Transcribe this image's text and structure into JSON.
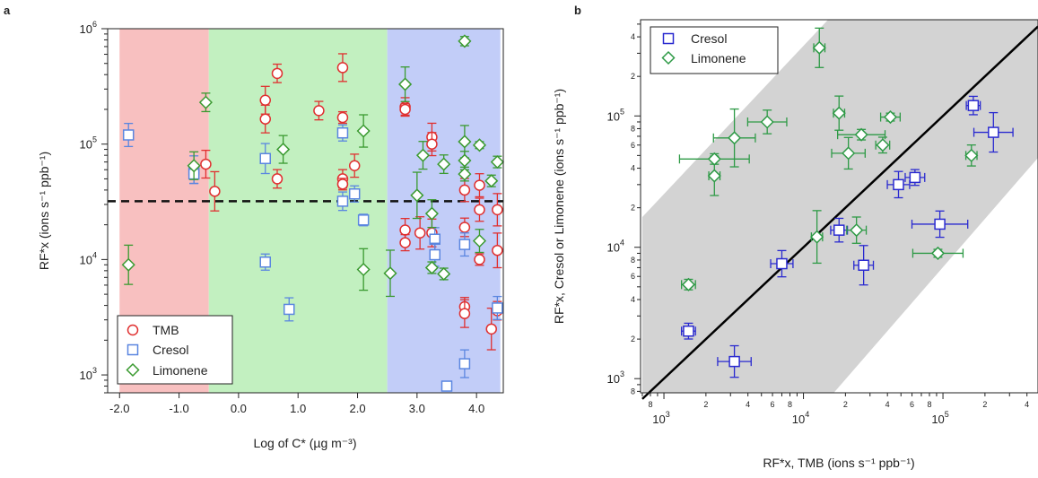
{
  "panel_labels": [
    "a",
    "b"
  ],
  "chart_data": [
    {
      "type": "scatter",
      "panel": "a",
      "xlabel": "Log of C* (µg m⁻³)",
      "ylabel": "RF*x (ions s⁻¹ ppb⁻¹)",
      "yscale": "log",
      "xlim": [
        -2.2,
        4.45
      ],
      "ylim": [
        700,
        1000000
      ],
      "xticks": [
        -2.0,
        -1.0,
        0.0,
        1.0,
        2.0,
        3.0,
        4.0
      ],
      "xtick_labels": [
        "-2.0",
        "-1.0",
        "0.0",
        "1.0",
        "2.0",
        "3.0",
        "4.0"
      ],
      "yticks": [
        {
          "label": "10",
          "exp": "3"
        },
        {
          "label": "10",
          "exp": "4"
        },
        {
          "label": "10",
          "exp": "5"
        },
        {
          "label": "10",
          "exp": "6"
        }
      ],
      "shaded_regions": [
        {
          "x": [
            -2.0,
            -0.5
          ],
          "color": "#f8c0c0"
        },
        {
          "x": [
            -0.5,
            2.5
          ],
          "color": "#c2f0c0"
        },
        {
          "x": [
            2.5,
            4.4
          ],
          "color": "#c2cdf8"
        }
      ],
      "reference_line": {
        "y": 32000,
        "style": "dashed"
      },
      "legend": {
        "position": "bottom-left",
        "entries": [
          "TMB",
          "Cresol",
          "Limonene"
        ]
      },
      "series": [
        {
          "name": "TMB",
          "marker": "circle",
          "color": "#e03030",
          "points": [
            {
              "x": -0.55,
              "y": 67000,
              "err": 0.12
            },
            {
              "x": -0.4,
              "y": 39000,
              "err": 0.17
            },
            {
              "x": 0.45,
              "y": 240000,
              "err": 0.12
            },
            {
              "x": 0.45,
              "y": 165000,
              "err": 0.12
            },
            {
              "x": 0.65,
              "y": 410000,
              "err": 0.08
            },
            {
              "x": 0.65,
              "y": 50000,
              "err": 0.08
            },
            {
              "x": 1.35,
              "y": 195000,
              "err": 0.08
            },
            {
              "x": 1.75,
              "y": 460000,
              "err": 0.12
            },
            {
              "x": 1.75,
              "y": 170000,
              "err": 0.05
            },
            {
              "x": 1.75,
              "y": 50000,
              "err": 0.08
            },
            {
              "x": 1.75,
              "y": 45000,
              "err": 0.05
            },
            {
              "x": 1.95,
              "y": 65000,
              "err": 0.1
            },
            {
              "x": 2.8,
              "y": 210000,
              "err": 0.08
            },
            {
              "x": 2.8,
              "y": 200000,
              "err": 0.05
            },
            {
              "x": 2.8,
              "y": 18000,
              "err": 0.1
            },
            {
              "x": 2.8,
              "y": 14000,
              "err": 0.07
            },
            {
              "x": 3.05,
              "y": 17000,
              "err": 0.14
            },
            {
              "x": 3.25,
              "y": 115000,
              "err": 0.12
            },
            {
              "x": 3.25,
              "y": 100000,
              "err": 0.1
            },
            {
              "x": 3.25,
              "y": 17000,
              "err": 0.12
            },
            {
              "x": 3.8,
              "y": 40000,
              "err": 0.1
            },
            {
              "x": 3.8,
              "y": 19000,
              "err": 0.08
            },
            {
              "x": 3.8,
              "y": 3900,
              "err": 0.08
            },
            {
              "x": 3.8,
              "y": 3400,
              "err": 0.12
            },
            {
              "x": 4.05,
              "y": 44000,
              "err": 0.1
            },
            {
              "x": 4.05,
              "y": 27000,
              "err": 0.1
            },
            {
              "x": 4.05,
              "y": 10000,
              "err": 0.05
            },
            {
              "x": 4.25,
              "y": 2500,
              "err": 0.18
            },
            {
              "x": 4.35,
              "y": 27000,
              "err": 0.14
            },
            {
              "x": 4.35,
              "y": 12000,
              "err": 0.15
            },
            {
              "x": 4.35,
              "y": 3600,
              "err": 0.08
            }
          ]
        },
        {
          "name": "Cresol",
          "marker": "square",
          "color": "#5a86e0",
          "points": [
            {
              "x": -1.85,
              "y": 120000,
              "err": 0.1
            },
            {
              "x": -0.75,
              "y": 60000,
              "err": 0.12
            },
            {
              "x": -0.75,
              "y": 55000,
              "err": 0.08
            },
            {
              "x": 0.45,
              "y": 75000,
              "err": 0.13
            },
            {
              "x": 0.45,
              "y": 9500,
              "err": 0.07
            },
            {
              "x": 0.85,
              "y": 3700,
              "err": 0.1
            },
            {
              "x": 1.75,
              "y": 125000,
              "err": 0.07
            },
            {
              "x": 1.75,
              "y": 32000,
              "err": 0.08
            },
            {
              "x": 1.95,
              "y": 37000,
              "err": 0.07
            },
            {
              "x": 2.1,
              "y": 22000,
              "err": 0.05
            },
            {
              "x": 3.3,
              "y": 15000,
              "err": 0.1
            },
            {
              "x": 3.3,
              "y": 11000,
              "err": 0.1
            },
            {
              "x": 3.5,
              "y": 800,
              "err": 0.02
            },
            {
              "x": 3.8,
              "y": 13500,
              "err": 0.1
            },
            {
              "x": 3.8,
              "y": 1250,
              "err": 0.12
            },
            {
              "x": 4.35,
              "y": 3800,
              "err": 0.1
            }
          ]
        },
        {
          "name": "Limonene",
          "marker": "diamond",
          "color": "#3a9a30",
          "points": [
            {
              "x": -1.85,
              "y": 9000,
              "err": 0.17
            },
            {
              "x": -0.55,
              "y": 230000,
              "err": 0.08
            },
            {
              "x": -0.75,
              "y": 65000,
              "err": 0.12
            },
            {
              "x": 0.75,
              "y": 90000,
              "err": 0.12
            },
            {
              "x": 2.1,
              "y": 130000,
              "err": 0.14
            },
            {
              "x": 2.1,
              "y": 8200,
              "err": 0.18
            },
            {
              "x": 2.55,
              "y": 7600,
              "err": 0.2
            },
            {
              "x": 2.8,
              "y": 330000,
              "err": 0.15
            },
            {
              "x": 3.0,
              "y": 36000,
              "err": 0.2
            },
            {
              "x": 3.1,
              "y": 80000,
              "err": 0.12
            },
            {
              "x": 3.25,
              "y": 25000,
              "err": 0.12
            },
            {
              "x": 3.25,
              "y": 8500,
              "err": 0.05
            },
            {
              "x": 3.45,
              "y": 67000,
              "err": 0.08
            },
            {
              "x": 3.45,
              "y": 7500,
              "err": 0.05
            },
            {
              "x": 3.8,
              "y": 780000,
              "err": 0.04
            },
            {
              "x": 3.8,
              "y": 105000,
              "err": 0.14
            },
            {
              "x": 3.8,
              "y": 72000,
              "err": 0.08
            },
            {
              "x": 3.8,
              "y": 55000,
              "err": 0.06
            },
            {
              "x": 4.05,
              "y": 98000,
              "err": 0.03
            },
            {
              "x": 4.05,
              "y": 14500,
              "err": 0.1
            },
            {
              "x": 4.25,
              "y": 48000,
              "err": 0.05
            },
            {
              "x": 4.35,
              "y": 70000,
              "err": 0.05
            }
          ]
        }
      ]
    },
    {
      "type": "scatter",
      "panel": "b",
      "xlabel": "RF*x, TMB (ions s⁻¹ ppb⁻¹)",
      "ylabel": "RF*x, Cresol or Limonene (ions s⁻¹ ppb⁻¹)",
      "xscale": "log",
      "yscale": "log",
      "xlim": [
        680,
        480000
      ],
      "ylim": [
        780,
        540000
      ],
      "xtick_major": [
        {
          "label": "10",
          "exp": "3"
        },
        {
          "label": "10",
          "exp": "4"
        },
        {
          "label": "10",
          "exp": "5"
        }
      ],
      "ytick_major": [
        {
          "label": "10",
          "exp": "3"
        },
        {
          "label": "10",
          "exp": "4"
        },
        {
          "label": "10",
          "exp": "5"
        }
      ],
      "minor_tick_labels": [
        "8",
        "2",
        "4",
        "6",
        "8",
        "2",
        "4",
        "6",
        "8",
        "2",
        "4",
        "6",
        "8",
        "2",
        "4"
      ],
      "line": {
        "type": "1:1",
        "color": "#000000"
      },
      "band": {
        "type": "factor of 10 around 1:1",
        "color": "#d3d3d3"
      },
      "legend": {
        "position": "top-left",
        "entries": [
          "Cresol",
          "Limonene"
        ]
      },
      "series": [
        {
          "name": "Cresol",
          "marker": "square",
          "color": "#2a2ad0",
          "points": [
            {
              "x": 1500,
              "y": 2300,
              "xerr": 0.05,
              "yerr": 0.06
            },
            {
              "x": 3200,
              "y": 1350,
              "xerr": 0.12,
              "yerr": 0.12
            },
            {
              "x": 7000,
              "y": 7500,
              "xerr": 0.08,
              "yerr": 0.1
            },
            {
              "x": 18000,
              "y": 13500,
              "xerr": 0.06,
              "yerr": 0.09
            },
            {
              "x": 27000,
              "y": 7300,
              "xerr": 0.07,
              "yerr": 0.15
            },
            {
              "x": 48000,
              "y": 30000,
              "xerr": 0.08,
              "yerr": 0.1
            },
            {
              "x": 63000,
              "y": 34000,
              "xerr": 0.07,
              "yerr": 0.06
            },
            {
              "x": 95000,
              "y": 15000,
              "xerr": 0.2,
              "yerr": 0.1
            },
            {
              "x": 165000,
              "y": 120000,
              "xerr": 0.05,
              "yerr": 0.07
            },
            {
              "x": 230000,
              "y": 75000,
              "xerr": 0.14,
              "yerr": 0.15
            }
          ]
        },
        {
          "name": "Limonene",
          "marker": "diamond",
          "color": "#2e9a46",
          "points": [
            {
              "x": 1500,
              "y": 5200,
              "xerr": 0.05,
              "yerr": 0.04
            },
            {
              "x": 2300,
              "y": 35000,
              "xerr": 0.04,
              "yerr": 0.15
            },
            {
              "x": 2300,
              "y": 47000,
              "xerr": 0.25,
              "yerr": 0.04
            },
            {
              "x": 3200,
              "y": 68000,
              "xerr": 0.15,
              "yerr": 0.22
            },
            {
              "x": 5500,
              "y": 90000,
              "xerr": 0.14,
              "yerr": 0.09
            },
            {
              "x": 12500,
              "y": 12000,
              "xerr": 0.04,
              "yerr": 0.2
            },
            {
              "x": 13000,
              "y": 330000,
              "xerr": 0.04,
              "yerr": 0.15
            },
            {
              "x": 18000,
              "y": 105000,
              "xerr": 0.04,
              "yerr": 0.13
            },
            {
              "x": 21000,
              "y": 52000,
              "xerr": 0.12,
              "yerr": 0.12
            },
            {
              "x": 24000,
              "y": 13500,
              "xerr": 0.07,
              "yerr": 0.1
            },
            {
              "x": 26000,
              "y": 72000,
              "xerr": 0.17,
              "yerr": 0.04
            },
            {
              "x": 37000,
              "y": 60000,
              "xerr": 0.05,
              "yerr": 0.06
            },
            {
              "x": 42000,
              "y": 98000,
              "xerr": 0.07,
              "yerr": 0.03
            },
            {
              "x": 92000,
              "y": 9000,
              "xerr": 0.18,
              "yerr": 0.03
            },
            {
              "x": 160000,
              "y": 50000,
              "xerr": 0.04,
              "yerr": 0.08
            }
          ]
        }
      ]
    }
  ]
}
